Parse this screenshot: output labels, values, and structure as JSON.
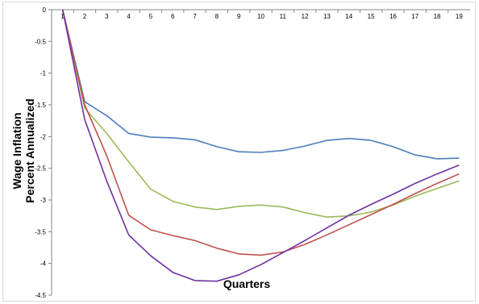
{
  "chart_data": {
    "type": "line",
    "title": "",
    "xlabel": "Quarters",
    "ylabel_lines": [
      "Wage Inflation",
      "Percent Annualized"
    ],
    "x": [
      1,
      2,
      3,
      4,
      5,
      6,
      7,
      8,
      9,
      10,
      11,
      12,
      13,
      14,
      15,
      16,
      17,
      18,
      19
    ],
    "ylim": [
      -4.5,
      0
    ],
    "yticks": [
      0,
      -0.5,
      -1,
      -1.5,
      -2,
      -2.5,
      -3,
      -3.5,
      -4,
      -4.5
    ],
    "ytick_labels": [
      "0",
      "-0.5",
      "-1",
      "-1.5",
      "-2",
      "-2.5",
      "-3",
      "-3.5",
      "-4",
      "-4.5"
    ],
    "grid": false,
    "legend": "none",
    "series": [
      {
        "color": "#4a7ebb",
        "values": [
          0,
          -1.45,
          -1.67,
          -1.95,
          -2.01,
          -2.02,
          -2.05,
          -2.16,
          -2.24,
          -2.25,
          -2.22,
          -2.15,
          -2.06,
          -2.03,
          -2.06,
          -2.16,
          -2.29,
          -2.35,
          -2.34
        ]
      },
      {
        "color": "#9bbb59",
        "values": [
          0,
          -1.55,
          -1.95,
          -2.4,
          -2.83,
          -3.02,
          -3.11,
          -3.15,
          -3.1,
          -3.08,
          -3.11,
          -3.2,
          -3.27,
          -3.25,
          -3.19,
          -3.08,
          -2.94,
          -2.82,
          -2.7
        ]
      },
      {
        "color": "#c0504d",
        "values": [
          0,
          -1.5,
          -2.3,
          -3.24,
          -3.47,
          -3.56,
          -3.64,
          -3.76,
          -3.85,
          -3.87,
          -3.82,
          -3.7,
          -3.55,
          -3.39,
          -3.23,
          -3.07,
          -2.9,
          -2.74,
          -2.59
        ]
      },
      {
        "color": "#7030a0",
        "values": [
          0,
          -1.73,
          -2.7,
          -3.55,
          -3.88,
          -4.14,
          -4.27,
          -4.28,
          -4.18,
          -4.02,
          -3.83,
          -3.64,
          -3.44,
          -3.24,
          -3.07,
          -2.91,
          -2.74,
          -2.59,
          -2.45
        ]
      }
    ]
  }
}
